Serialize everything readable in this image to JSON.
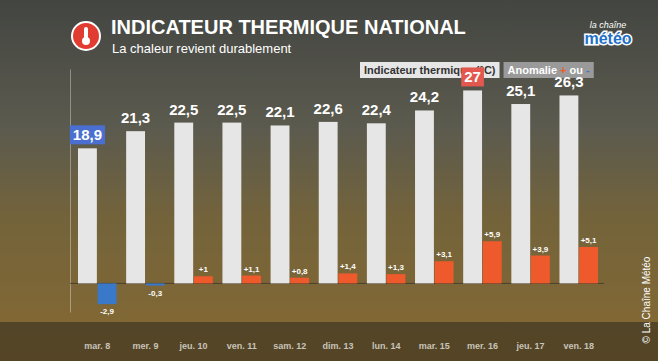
{
  "chart_data": {
    "type": "bar",
    "title": "INDICATEUR THERMIQUE NATIONAL",
    "subtitle": "La chaleur revient durablement",
    "annotations": [
      "la chaîne",
      "météo",
      "© La Chaîne Météo"
    ],
    "categories": [
      "mar. 8",
      "mer. 9",
      "jeu. 10",
      "ven. 11",
      "sam. 12",
      "dim. 13",
      "lun. 14",
      "mar. 15",
      "mer. 16",
      "jeu. 17",
      "ven. 18"
    ],
    "series": [
      {
        "name": "Indicateur thermique (°C)",
        "color": "#e6e6e6",
        "values": [
          18.9,
          21.3,
          22.5,
          22.5,
          22.1,
          22.6,
          22.4,
          24.2,
          27,
          25.1,
          26.3
        ],
        "value_labels": [
          "18,9",
          "21,3",
          "22,5",
          "22,5",
          "22,1",
          "22,6",
          "22,4",
          "24,2",
          "27",
          "25,1",
          "26,3"
        ]
      },
      {
        "name": "Anomalie + ou -",
        "color": "#9a9a9a",
        "colors": [
          "#3a78c9",
          "#3a78c9",
          "#ef5a2c",
          "#ef5a2c",
          "#ef5a2c",
          "#ef5a2c",
          "#ef5a2c",
          "#ef5a2c",
          "#ef5a2c",
          "#ef5a2c",
          "#ef5a2c"
        ],
        "values": [
          -2.9,
          -0.3,
          1,
          1.1,
          0.8,
          1.4,
          1.3,
          3.1,
          5.9,
          3.9,
          5.1
        ],
        "value_labels": [
          "-2,9",
          "-0,3",
          "+1",
          "+1,1",
          "+0,8",
          "+1,4",
          "+1,3",
          "+3,1",
          "+5,9",
          "+3,9",
          "+5,1"
        ]
      }
    ],
    "ylim": [
      -4,
      30
    ],
    "yticks": [
      0
    ],
    "grid": true,
    "data_labels": true,
    "tick_labels": false,
    "legend": "top-right"
  }
}
